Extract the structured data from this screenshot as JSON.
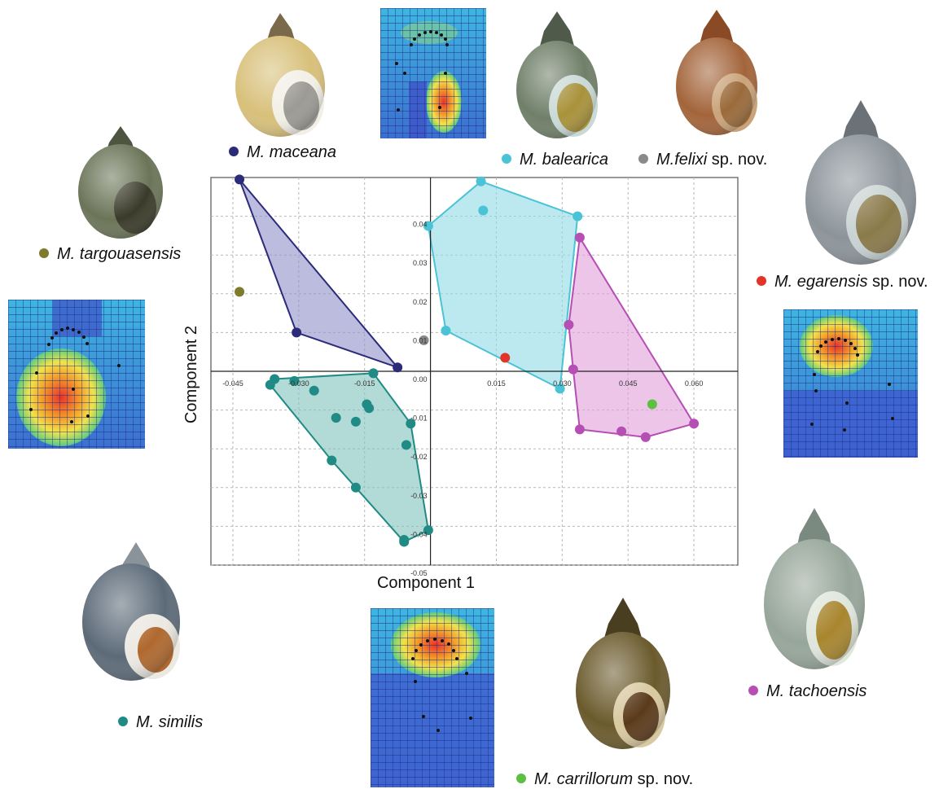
{
  "chart_data": {
    "type": "scatter",
    "xlabel": "Component 1",
    "ylabel": "Component 2",
    "xlim": [
      -0.05,
      0.07
    ],
    "ylim": [
      -0.05,
      0.05
    ],
    "x_ticks": [
      -0.045,
      -0.03,
      -0.015,
      0.015,
      0.03,
      0.045,
      0.06
    ],
    "x_tick_labels": [
      "-0.045",
      "-0.030",
      "-0.015",
      "0.015",
      "0.030",
      "0.045",
      "0.060"
    ],
    "y_ticks": [
      0.04,
      0.03,
      0.02,
      0.01,
      0.0,
      -0.01,
      -0.02,
      -0.03,
      -0.04,
      -0.05
    ],
    "y_tick_labels": [
      "0.04",
      "0.03",
      "0.02",
      "0.01",
      "0.00",
      "-0.01",
      "-0.02",
      "-0.03",
      "-0.04",
      "-0.05"
    ],
    "grid": true,
    "convex_hulls": true,
    "series": [
      {
        "name": "M. maceana",
        "color": "#2c2b7a",
        "fill": "#8f8fc8",
        "hull": true,
        "points": [
          [
            -0.0435,
            0.0495
          ],
          [
            -0.0305,
            0.01
          ],
          [
            -0.0075,
            0.001
          ]
        ]
      },
      {
        "name": "M. targouasensis",
        "color": "#7e7b2c",
        "hull": false,
        "points": [
          [
            -0.0435,
            0.0205
          ]
        ]
      },
      {
        "name": "M. felixi sp. nov.",
        "color": "#8a8a8a",
        "hull": false,
        "points": [
          [
            -0.0015,
            0.008
          ]
        ]
      },
      {
        "name": "M. balearica",
        "color": "#4bc3d6",
        "fill": "#8fdbe6",
        "hull": true,
        "points": [
          [
            0.0115,
            0.049
          ],
          [
            0.012,
            0.0415
          ],
          [
            -0.0005,
            0.0375
          ],
          [
            0.0335,
            0.04
          ],
          [
            0.0035,
            0.0105
          ],
          [
            0.0295,
            -0.0045
          ]
        ]
      },
      {
        "name": "M. egarensis sp. nov.",
        "color": "#e3342a",
        "hull": false,
        "points": [
          [
            0.017,
            0.0035
          ]
        ]
      },
      {
        "name": "M. tachoensis",
        "color": "#b54fb3",
        "fill": "#df9fd8",
        "hull": true,
        "points": [
          [
            0.034,
            0.0345
          ],
          [
            0.0315,
            0.012
          ],
          [
            0.0325,
            0.0005
          ],
          [
            0.034,
            -0.015
          ],
          [
            0.0435,
            -0.0155
          ],
          [
            0.049,
            -0.017
          ],
          [
            0.06,
            -0.0135
          ]
        ]
      },
      {
        "name": "M. carrillorum sp. nov.",
        "color": "#5cbf42",
        "hull": false,
        "points": [
          [
            0.0505,
            -0.0085
          ]
        ]
      },
      {
        "name": "M. similis",
        "color": "#1f8b84",
        "fill": "#7fc2bd",
        "hull": true,
        "points": [
          [
            -0.0365,
            -0.0035
          ],
          [
            -0.0355,
            -0.002
          ],
          [
            -0.031,
            -0.0025
          ],
          [
            -0.0265,
            -0.005
          ],
          [
            -0.013,
            -0.0005
          ],
          [
            -0.0145,
            -0.0085
          ],
          [
            -0.014,
            -0.0095
          ],
          [
            -0.0215,
            -0.012
          ],
          [
            -0.017,
            -0.013
          ],
          [
            -0.0045,
            -0.0135
          ],
          [
            -0.0055,
            -0.019
          ],
          [
            -0.0225,
            -0.023
          ],
          [
            -0.017,
            -0.03
          ],
          [
            -0.006,
            -0.044
          ],
          [
            -0.006,
            -0.0435
          ],
          [
            -0.0005,
            -0.041
          ]
        ]
      }
    ]
  },
  "legend": [
    {
      "key": "maceana",
      "species": "M. maceana",
      "suffix": "",
      "color": "#2c2b7a"
    },
    {
      "key": "balearica",
      "species": "M. balearica",
      "suffix": "",
      "color": "#4bc3d6"
    },
    {
      "key": "felixi",
      "species": "M.felixi",
      "suffix": " sp. nov.",
      "color": "#8a8a8a"
    },
    {
      "key": "targouasensis",
      "species": "M. targouasensis",
      "suffix": "",
      "color": "#7e7b2c"
    },
    {
      "key": "egarensis",
      "species": "M. egarensis",
      "suffix": " sp. nov.",
      "color": "#e3342a"
    },
    {
      "key": "tachoensis",
      "species": "M. tachoensis",
      "suffix": "",
      "color": "#b54fb3"
    },
    {
      "key": "similis",
      "species": "M. similis",
      "suffix": "",
      "color": "#1f8b84"
    },
    {
      "key": "carrillorum",
      "species": "M. carrillorum",
      "suffix": " sp. nov.",
      "color": "#5cbf42"
    }
  ],
  "shell_photos": [
    {
      "key": "maceana",
      "icon": "shell-photo-icon",
      "tint": "#d8c07a"
    },
    {
      "key": "balearica",
      "icon": "shell-photo-icon",
      "tint": "#6f7f68"
    },
    {
      "key": "felixi",
      "icon": "shell-photo-icon",
      "tint": "#9a5a2e"
    },
    {
      "key": "targouasensis",
      "icon": "shell-photo-icon",
      "tint": "#6b7458"
    },
    {
      "key": "egarensis",
      "icon": "shell-photo-icon",
      "tint": "#8c949a"
    },
    {
      "key": "tachoensis",
      "icon": "shell-photo-icon",
      "tint": "#97a69a"
    },
    {
      "key": "similis",
      "icon": "shell-photo-icon",
      "tint": "#5c6a78"
    },
    {
      "key": "carrillorum",
      "icon": "shell-photo-icon",
      "tint": "#6a5a2c"
    }
  ],
  "deformation_grids": [
    {
      "key": "top",
      "icon": "deformation-grid-icon",
      "hot_region": "lower-center"
    },
    {
      "key": "left",
      "icon": "deformation-grid-icon",
      "hot_region": "lower-left"
    },
    {
      "key": "right",
      "icon": "deformation-grid-icon",
      "hot_region": "upper-center"
    },
    {
      "key": "bottom",
      "icon": "deformation-grid-icon",
      "hot_region": "upper-center"
    }
  ]
}
